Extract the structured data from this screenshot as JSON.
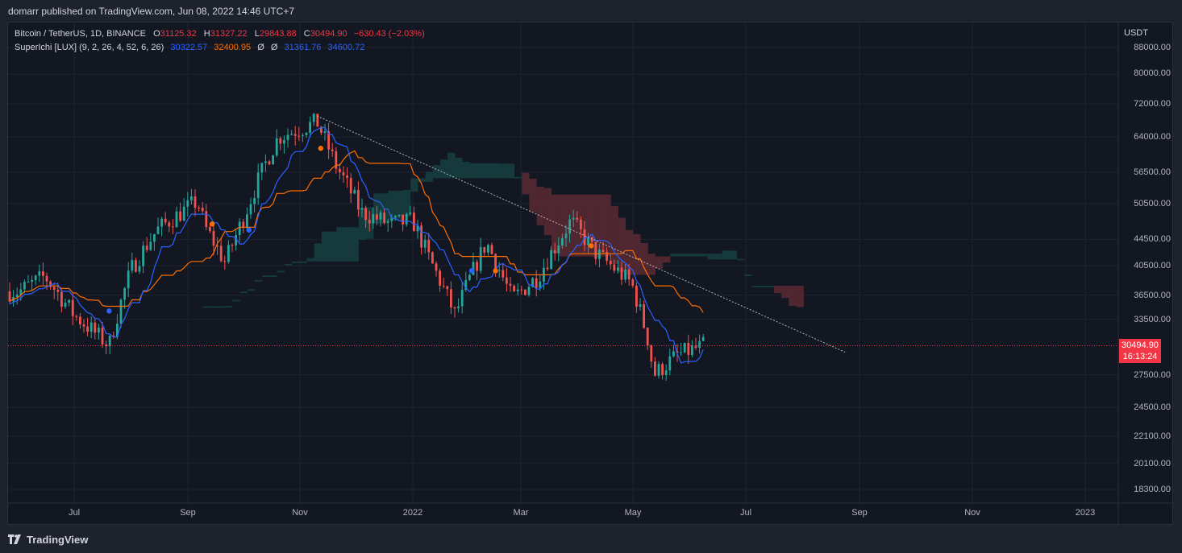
{
  "header": {
    "published": "domarr published on TradingView.com, Jun 08, 2022 14:46 UTC+7"
  },
  "legend": {
    "symbol": "Bitcoin / TetherUS, 1D, BINANCE",
    "open_label": "O",
    "open": "31125.32",
    "high_label": "H",
    "high": "31327.22",
    "low_label": "L",
    "low": "29843.88",
    "close_label": "C",
    "close": "30494.90",
    "change": "−630.43 (−2.03%)",
    "indicator": "SuperIchi [LUX] (9, 2, 26, 4, 52, 6, 26)",
    "v1": "30322.57",
    "v2": "32400.95",
    "v3": "Ø",
    "v4": "Ø",
    "v5": "31361.76",
    "v6": "34600.72"
  },
  "price_axis": {
    "unit": "USDT",
    "ticks": [
      "88000.00",
      "80000.00",
      "72000.00",
      "64000.00",
      "56500.00",
      "50500.00",
      "44500.00",
      "40500.00",
      "36500.00",
      "33500.00",
      "30494.90",
      "27500.00",
      "24500.00",
      "22100.00",
      "20100.00",
      "18300.00"
    ],
    "last_price": "30494.90",
    "countdown": "16:13:24"
  },
  "time_axis": {
    "ticks": [
      "Jul",
      "Sep",
      "Nov",
      "2022",
      "Mar",
      "May",
      "Jul",
      "Sep",
      "Nov",
      "2023"
    ]
  },
  "colors": {
    "bull": "#26a69a",
    "bear": "#ef5350",
    "tenkan": "#2962ff",
    "kijun": "#ff6d00",
    "cloud_bear": "#5b2a33",
    "cloud_bull": "#173f3f",
    "last_price": "#f23645"
  },
  "chart_data": {
    "type": "candlestick",
    "symbol": "BTCUSDT",
    "scale": "log",
    "ylim": [
      16500,
      96000
    ],
    "x_ticks": [
      "Jul",
      "Sep",
      "Nov",
      "2022",
      "Mar",
      "May",
      "Jul",
      "Sep",
      "Nov",
      "2023"
    ],
    "price_series": [
      [
        "2021-06-01",
        37000
      ],
      [
        "2021-06-15",
        39000
      ],
      [
        "2021-07-01",
        34000
      ],
      [
        "2021-07-20",
        30500
      ],
      [
        "2021-08-01",
        40000
      ],
      [
        "2021-08-15",
        46000
      ],
      [
        "2021-09-06",
        51000
      ],
      [
        "2021-09-10",
        46500
      ],
      [
        "2021-09-21",
        41000
      ],
      [
        "2021-10-01",
        48000
      ],
      [
        "2021-10-15",
        60000
      ],
      [
        "2021-10-20",
        64000
      ],
      [
        "2021-11-10",
        67500
      ],
      [
        "2021-11-20",
        58000
      ],
      [
        "2021-12-04",
        49000
      ],
      [
        "2021-12-20",
        47000
      ],
      [
        "2022-01-01",
        47500
      ],
      [
        "2022-01-10",
        41500
      ],
      [
        "2022-01-24",
        34000
      ],
      [
        "2022-02-10",
        44000
      ],
      [
        "2022-02-24",
        36000
      ],
      [
        "2022-03-10",
        39000
      ],
      [
        "2022-03-28",
        47500
      ],
      [
        "2022-04-10",
        42500
      ],
      [
        "2022-04-30",
        38000
      ],
      [
        "2022-05-09",
        31000
      ],
      [
        "2022-05-12",
        27500
      ],
      [
        "2022-05-25",
        29500
      ],
      [
        "2022-06-08",
        30494.9
      ]
    ],
    "trendline": [
      [
        "2021-11-10",
        69000
      ],
      [
        "2022-08-24",
        29800
      ]
    ],
    "last_price": 30494.9
  }
}
